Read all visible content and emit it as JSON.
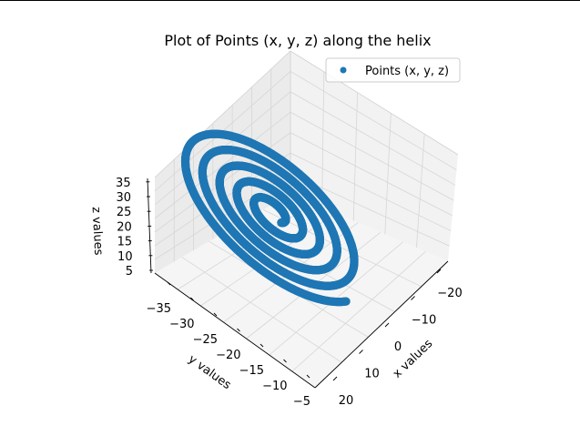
{
  "chart_data": {
    "type": "scatter",
    "projection": "3d",
    "title": "Plot of Points (x, y, z) along the helix",
    "xlabel": "x values",
    "ylabel": "y values",
    "zlabel": "z values",
    "xticks": [
      -20,
      -10,
      0,
      10,
      20
    ],
    "yticks": [
      -35,
      -30,
      -25,
      -20,
      -15,
      -10,
      -5
    ],
    "zticks": [
      5,
      10,
      15,
      20,
      25,
      30,
      35
    ],
    "xlim": [
      -25,
      25
    ],
    "ylim": [
      -37,
      -3
    ],
    "zlim": [
      3,
      37
    ],
    "grid": true,
    "legend_position": "top-right",
    "colors": {
      "series": "#1f77b4"
    },
    "series": [
      {
        "name": "Points (x, y, z)",
        "description_points": [
          {
            "turn": 0.0,
            "x": 20.0,
            "y": -5.0,
            "z": 5.0
          },
          {
            "turn": 1.0,
            "x": 16.0,
            "y": -11.0,
            "z": 11.0
          },
          {
            "turn": 2.0,
            "x": 12.0,
            "y": -17.0,
            "z": 17.0
          },
          {
            "turn": 3.0,
            "x": 8.0,
            "y": -23.0,
            "z": 23.0
          },
          {
            "turn": 4.0,
            "x": 4.0,
            "y": -29.0,
            "z": 29.0
          },
          {
            "turn": 5.0,
            "x": 2.0,
            "y": -35.0,
            "z": 35.0
          }
        ],
        "radius_start": 20,
        "radius_end": 2,
        "turns": 5
      }
    ]
  }
}
